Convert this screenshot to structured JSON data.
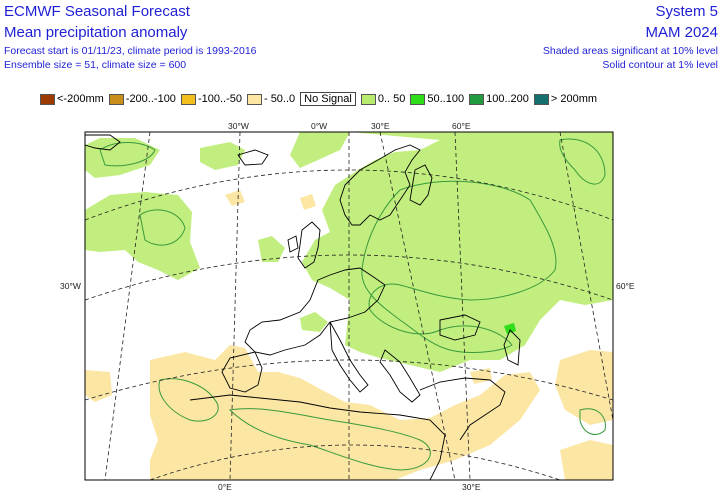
{
  "header": {
    "title": "ECMWF Seasonal Forecast",
    "subtitle": "Mean precipitation anomaly",
    "forecast_info": "Forecast start is 01/11/23, climate period is 1993-2016",
    "ensemble_info": "Ensemble size = 51, climate size = 600",
    "system": "System 5",
    "season": "MAM 2024",
    "shaded_note": "Shaded areas significant at 10% level",
    "contour_note": "Solid contour at 1% level"
  },
  "legend": [
    {
      "label": "<-200mm",
      "color": "#9c3a00"
    },
    {
      "label": "-200..-100",
      "color": "#c8901a"
    },
    {
      "label": "-100..-50",
      "color": "#f2c01e"
    },
    {
      "label": "- 50..0",
      "color": "#fbe6a4"
    },
    {
      "label": "No Signal",
      "color": "#ffffff"
    },
    {
      "label": "0.. 50",
      "color": "#b9ec6e"
    },
    {
      "label": "50..100",
      "color": "#2ede18"
    },
    {
      "label": "100..200",
      "color": "#229a40"
    },
    {
      "label": "> 200mm",
      "color": "#14706e"
    }
  ],
  "gridlines": {
    "top": [
      "30°W",
      "0°W",
      "30°E",
      "60°E"
    ],
    "left": "30°W",
    "right": "60°E",
    "bottom": [
      "0°E",
      "30°E"
    ]
  }
}
